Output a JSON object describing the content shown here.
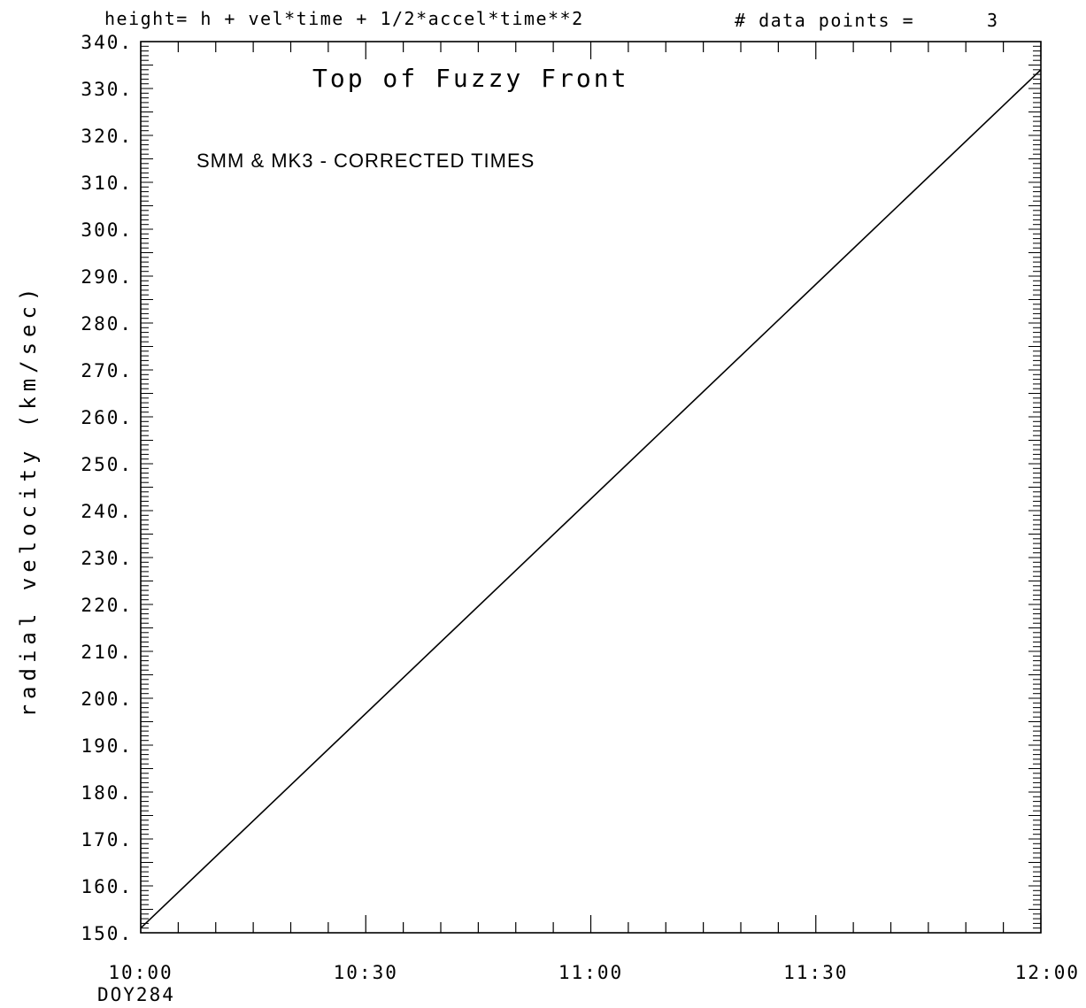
{
  "header": {
    "formula": "height= h + vel*time + 1/2*accel*time**2",
    "points_label": "# data points =",
    "points_value": "3"
  },
  "chart_data": {
    "type": "line",
    "title": "Top of Fuzzy Front",
    "subtitle": "SMM & MK3 - CORRECTED TIMES",
    "xlabel": "",
    "ylabel": "radial velocity (km/sec)",
    "xlim": [
      "10:00",
      "12:00"
    ],
    "ylim": [
      150,
      340
    ],
    "x_ticks": [
      "10:00",
      "10:30",
      "11:00",
      "11:30",
      "12:00"
    ],
    "x_date_label": "DOY284",
    "y_ticks": [
      "150.",
      "160.",
      "170.",
      "180.",
      "190.",
      "200.",
      "210.",
      "220.",
      "230.",
      "240.",
      "250.",
      "260.",
      "270.",
      "280.",
      "290.",
      "300.",
      "310.",
      "320.",
      "330.",
      "340."
    ],
    "grid": false,
    "series": [
      {
        "x": [
          "10:00",
          "12:00"
        ],
        "y": [
          151,
          334
        ]
      }
    ]
  }
}
